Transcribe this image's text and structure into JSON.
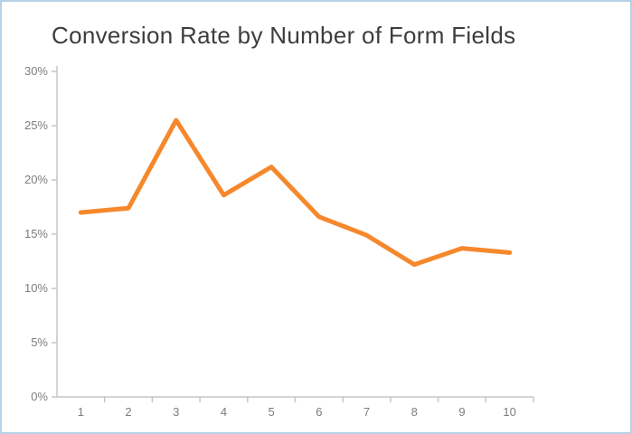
{
  "header": {
    "title": "Conversion Rate by Number of Form Fields"
  },
  "styles": {
    "frame_border_color": "#b7d2e8",
    "title_color": "#3d3d3d",
    "axis_color": "#c6c6c6",
    "tick_label_color": "#7d7d7d",
    "line_color": "#f6882c",
    "background": "#ffffff"
  },
  "chart_data": {
    "type": "line",
    "title": "Conversion Rate by Number of Form Fields",
    "categories": [
      "1",
      "2",
      "3",
      "4",
      "5",
      "6",
      "7",
      "8",
      "9",
      "10"
    ],
    "values": [
      17.0,
      17.4,
      25.5,
      18.6,
      21.2,
      16.6,
      14.9,
      12.2,
      13.7,
      13.3
    ],
    "xlabel": "",
    "ylabel": "",
    "ylim": [
      0,
      30
    ],
    "ytick_step": 5,
    "ytick_labels": [
      "0%",
      "5%",
      "10%",
      "15%",
      "20%",
      "25%",
      "30%"
    ],
    "grid": false,
    "legend": "none",
    "line_width": 5
  }
}
